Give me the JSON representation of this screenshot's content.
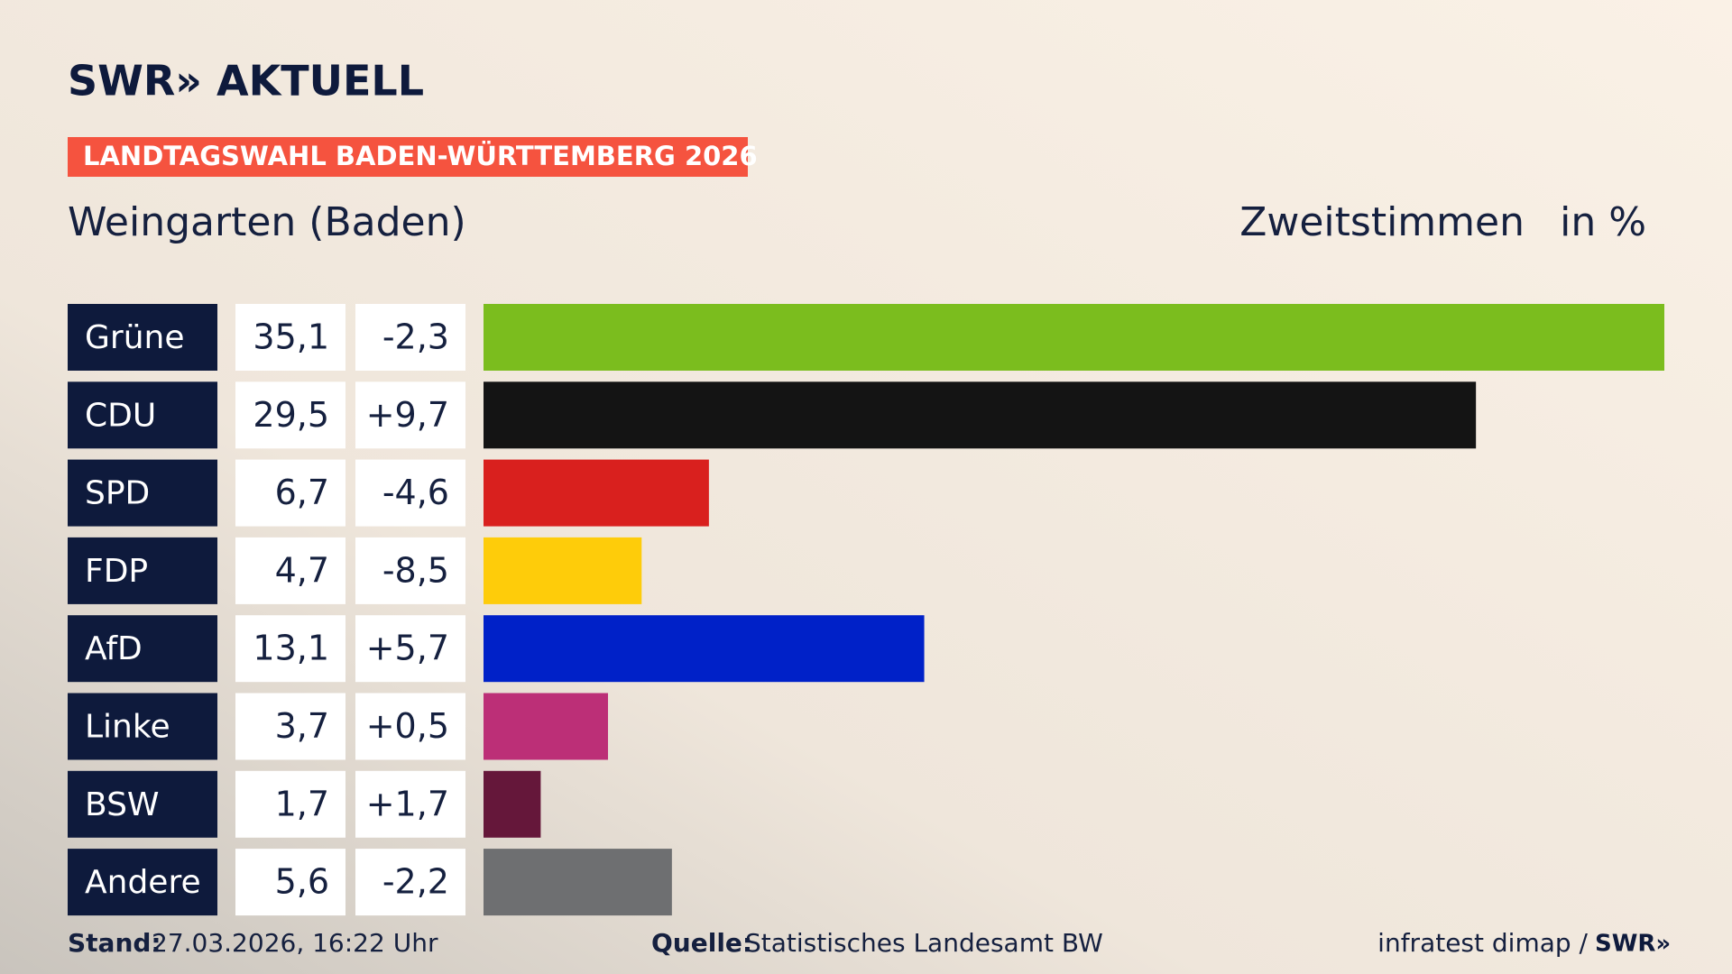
{
  "header": {
    "logo": "SWR» AKTUELL",
    "banner": "LANDTAGSWAHL BADEN-WÜRTTEMBERG 2026"
  },
  "chart_data": {
    "type": "bar",
    "orientation": "horizontal",
    "title": "Weingarten (Baden)",
    "subtitle": "Zweitstimmen",
    "unit": "in %",
    "categories": [
      "Grüne",
      "CDU",
      "SPD",
      "FDP",
      "AfD",
      "Linke",
      "BSW",
      "Andere"
    ],
    "values": [
      35.1,
      29.5,
      6.7,
      4.7,
      13.1,
      3.7,
      1.7,
      5.6
    ],
    "value_labels": [
      "35,1",
      "29,5",
      "6,7",
      "4,7",
      "13,1",
      "3,7",
      "1,7",
      "5,6"
    ],
    "colors": [
      "#7bbd1e",
      "#141414",
      "#d9201e",
      "#fecc0a",
      "#0021c8",
      "#bc2f77",
      "#65173a",
      "#6e6f71"
    ],
    "changes": {
      "values": [
        -2.3,
        9.7,
        -4.6,
        -8.5,
        5.7,
        0.5,
        1.7,
        -2.2
      ],
      "value_labels": [
        "-2,3",
        "+9,7",
        "-4,6",
        "-8,5",
        "+5,7",
        "+0,5",
        "+1,7",
        "-2,2"
      ]
    },
    "xlim": [
      0,
      35.1
    ]
  },
  "footer": {
    "stand_label": "Stand:",
    "stand": "27.03.2026, 16:22 Uhr",
    "source_label": "Quelle:",
    "source": "Statistisches Landesamt BW",
    "credit": "infratest dimap /",
    "credit_logo": "SWR»"
  }
}
